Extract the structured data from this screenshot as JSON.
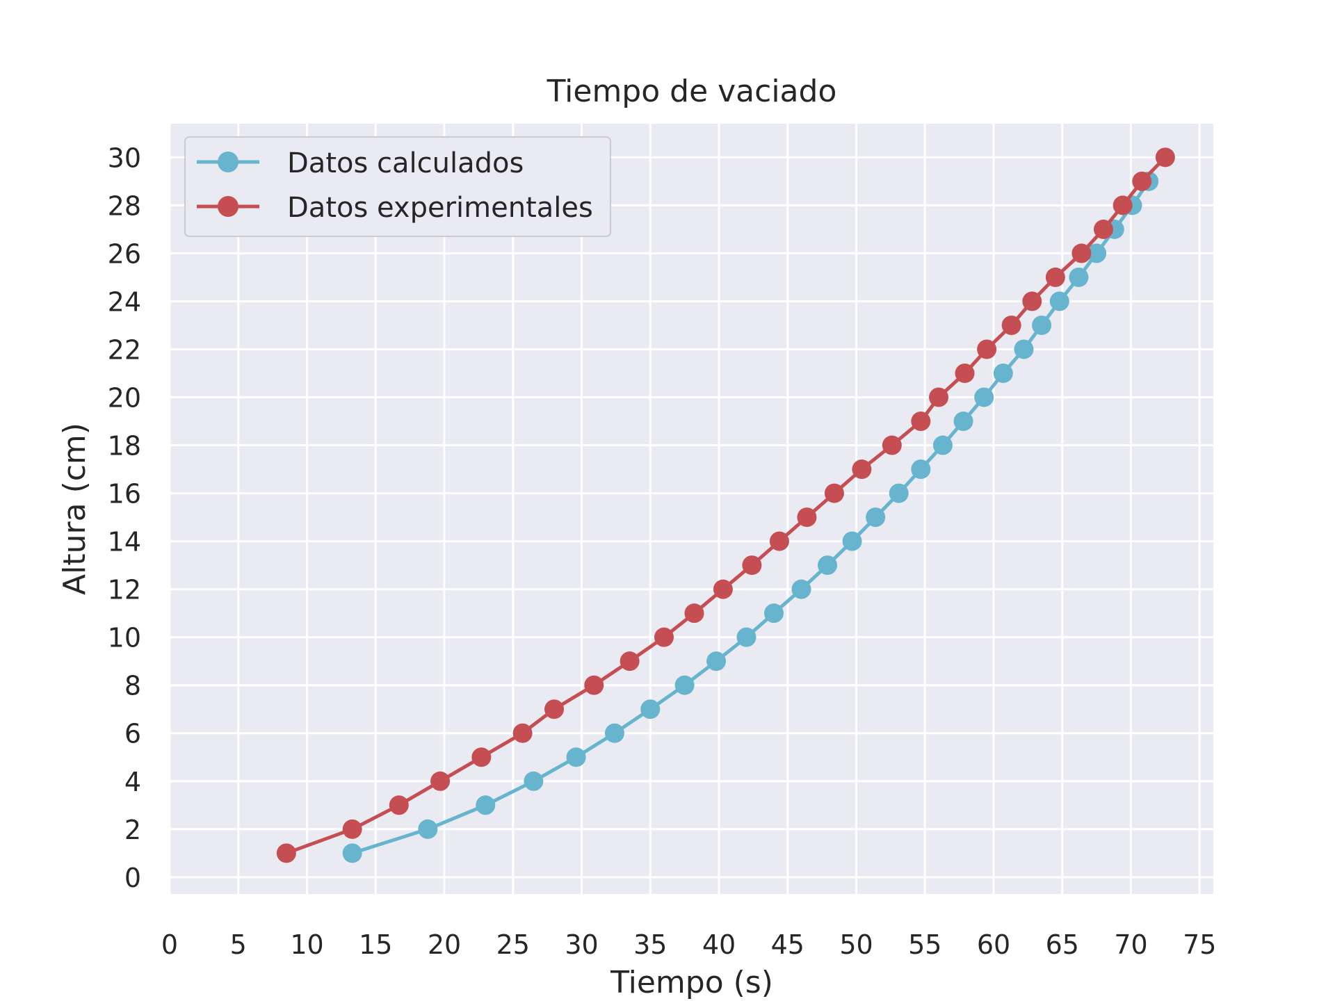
{
  "chart_data": {
    "type": "line",
    "title": "Tiempo de vaciado",
    "xlabel": "Tiempo (s)",
    "ylabel": "Altura (cm)",
    "xlim": [
      0,
      76
    ],
    "ylim": [
      -0.7,
      31.4
    ],
    "xticks": [
      0,
      5,
      10,
      15,
      20,
      25,
      30,
      35,
      40,
      45,
      50,
      55,
      60,
      65,
      70,
      75
    ],
    "yticks": [
      0,
      2,
      4,
      6,
      8,
      10,
      12,
      14,
      16,
      18,
      20,
      22,
      24,
      26,
      28,
      30
    ],
    "grid": true,
    "legend": "top-left",
    "series": [
      {
        "name": "Datos calculados",
        "color": "#67b4ce",
        "x": [
          13.3,
          18.8,
          23.0,
          26.5,
          29.6,
          32.4,
          35.0,
          37.5,
          39.8,
          42.0,
          44.0,
          46.0,
          47.9,
          49.7,
          51.4,
          53.1,
          54.7,
          56.3,
          57.8,
          59.3,
          60.7,
          62.2,
          63.5,
          64.8,
          66.2,
          67.5,
          68.8,
          70.1,
          71.3
        ],
        "y": [
          1,
          2,
          3,
          4,
          5,
          6,
          7,
          8,
          9,
          10,
          11,
          12,
          13,
          14,
          15,
          16,
          17,
          18,
          19,
          20,
          21,
          22,
          23,
          24,
          25,
          26,
          27,
          28,
          29
        ]
      },
      {
        "name": "Datos experimentales",
        "color": "#c44e52",
        "x": [
          8.5,
          13.3,
          16.7,
          19.7,
          22.7,
          25.7,
          28.0,
          30.9,
          33.5,
          36.0,
          38.2,
          40.3,
          42.4,
          44.4,
          46.4,
          48.4,
          50.4,
          52.6,
          54.7,
          56.0,
          57.9,
          59.5,
          61.3,
          62.8,
          64.5,
          66.4,
          68.0,
          69.4,
          70.8,
          72.5
        ],
        "y": [
          1,
          2,
          3,
          4,
          5,
          6,
          7,
          8,
          9,
          10,
          11,
          12,
          13,
          14,
          15,
          16,
          17,
          18,
          19,
          20,
          21,
          22,
          23,
          24,
          25,
          26,
          27,
          28,
          29,
          30
        ]
      }
    ]
  }
}
